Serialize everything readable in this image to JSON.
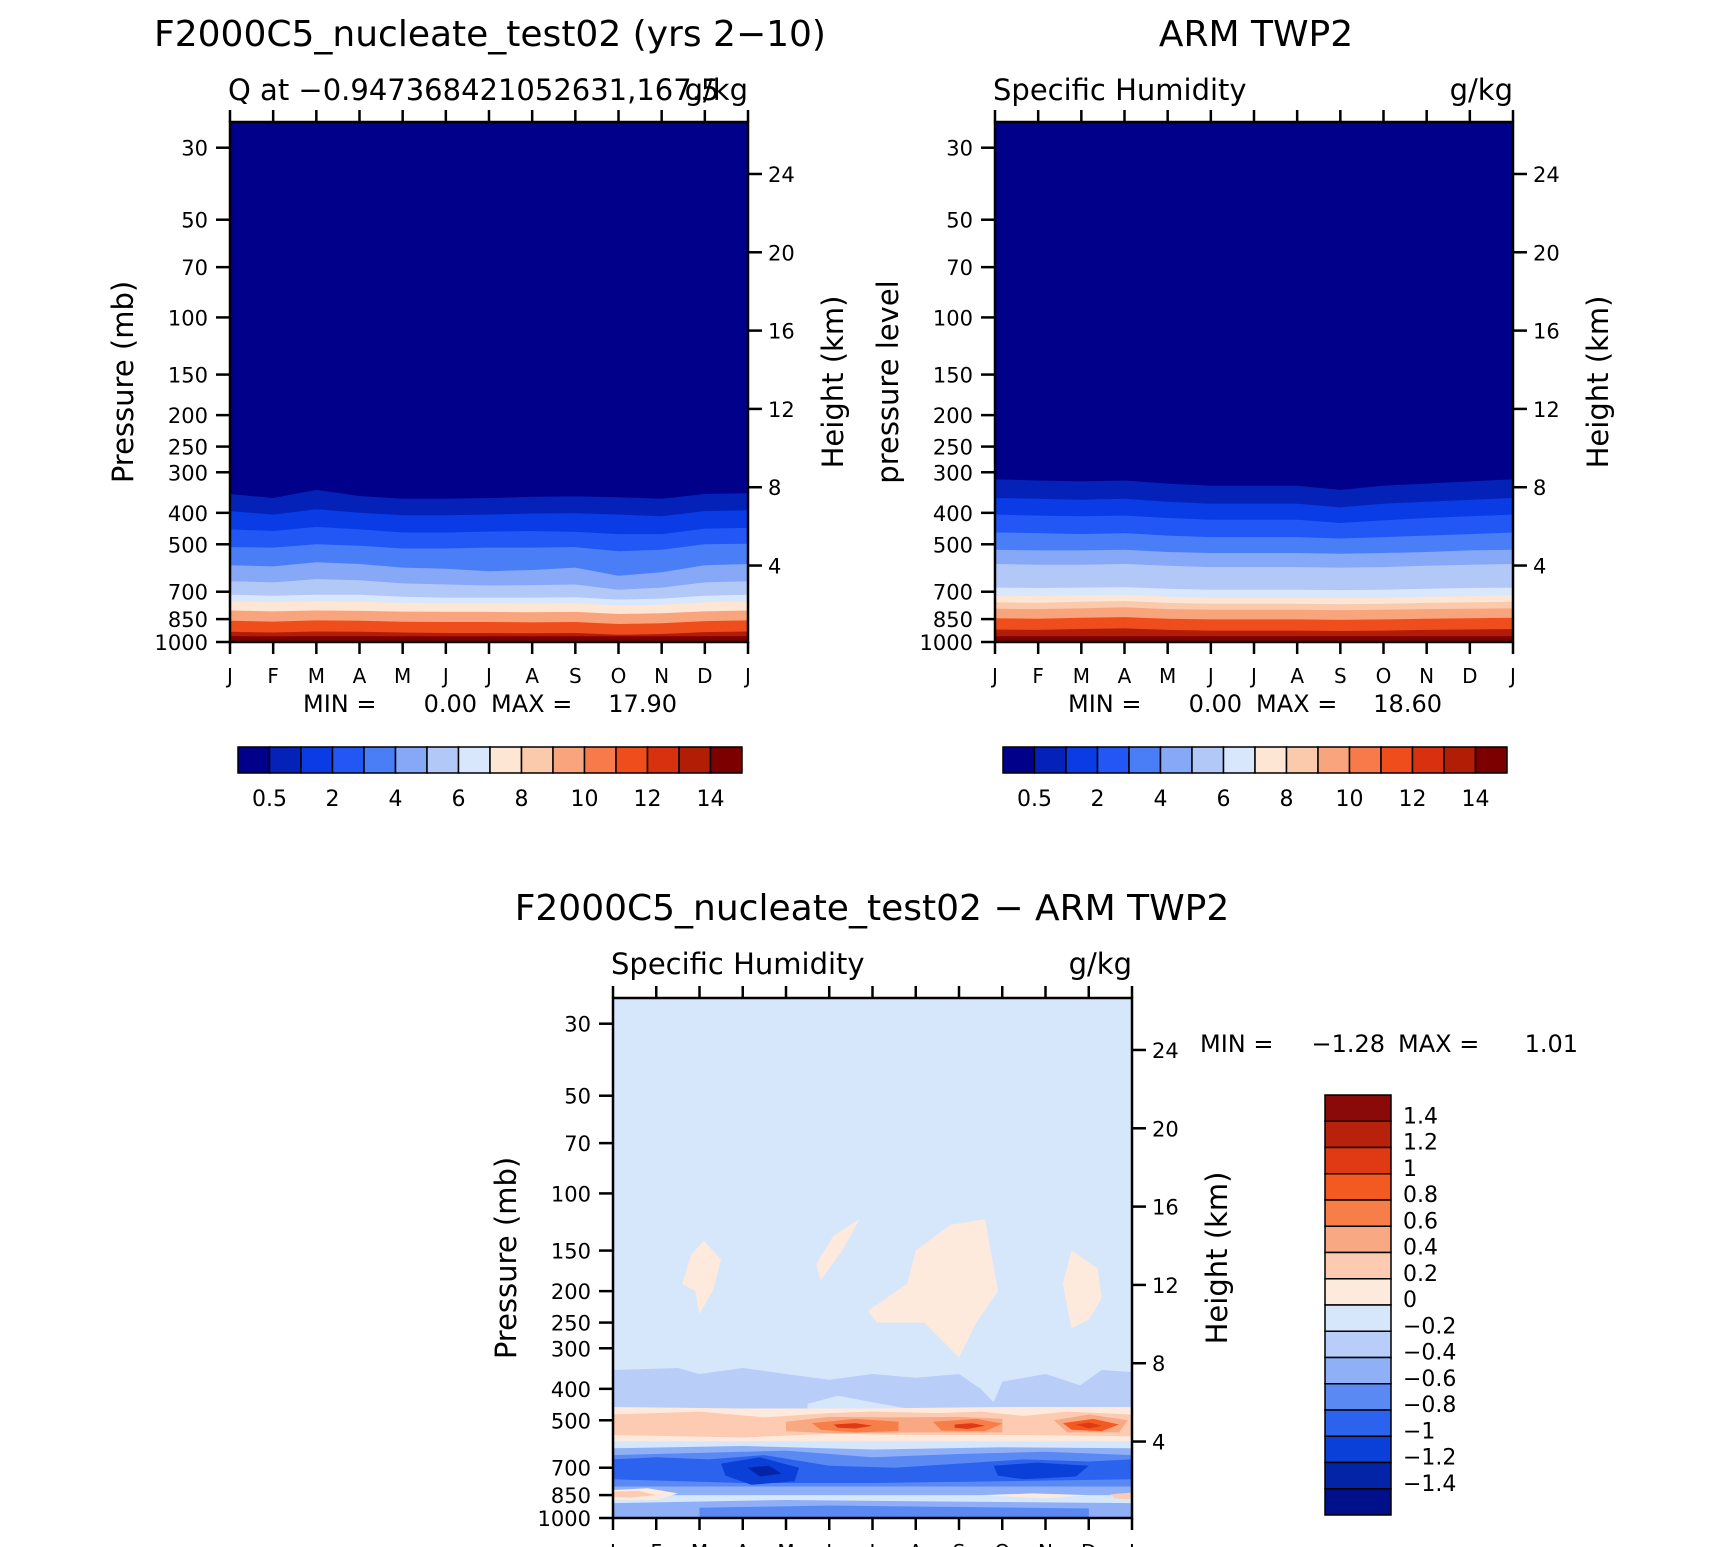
{
  "chart_data": [
    {
      "type": "heatmap",
      "title": "F2000C5_nucleate_test02 (yrs 2−10)",
      "subtitle_left": "Q at −0.947368421052631,167.5",
      "units": "g/kg",
      "ylabel_left": "Pressure (mb)",
      "ylabel_right": "Height (km)",
      "months": [
        "J",
        "F",
        "M",
        "A",
        "M",
        "J",
        "J",
        "A",
        "S",
        "O",
        "N",
        "D",
        "J"
      ],
      "pressure_ticks": [
        30,
        50,
        70,
        100,
        150,
        200,
        250,
        300,
        400,
        500,
        700,
        850,
        1000
      ],
      "height_ticks": [
        24,
        20,
        16,
        12,
        8,
        4
      ],
      "ylim_pressure": [
        1000,
        25
      ],
      "stats": {
        "min_label": "MIN =",
        "min_value": "0.00",
        "max_label": "MAX =",
        "max_value": "17.90"
      },
      "colorbar": {
        "levels": [
          "0.5",
          "2",
          "4",
          "6",
          "8",
          "10",
          "12",
          "14"
        ],
        "colors": [
          "#00008a",
          "#0522b8",
          "#0a3ce6",
          "#2257f5",
          "#4a7ef7",
          "#86a8f6",
          "#b2c9f8",
          "#d9e7fd",
          "#fde6d3",
          "#fbc9ab",
          "#f8a47c",
          "#f77a4a",
          "#f04d1d",
          "#d8310f",
          "#b21d06",
          "#7d0000"
        ]
      },
      "contour_bands_pressure_mb": [
        {
          "level": 0.5,
          "profile": [
            350,
            360,
            340,
            355,
            362,
            362,
            360,
            357,
            356,
            358,
            362,
            350,
            348
          ]
        },
        {
          "level": 1,
          "profile": [
            395,
            405,
            390,
            400,
            407,
            407,
            405,
            402,
            401,
            405,
            410,
            395,
            393
          ]
        },
        {
          "level": 2,
          "profile": [
            450,
            455,
            442,
            450,
            460,
            460,
            457,
            455,
            458,
            465,
            465,
            448,
            445
          ]
        },
        {
          "level": 3,
          "profile": [
            510,
            512,
            500,
            505,
            515,
            515,
            512,
            512,
            510,
            525,
            520,
            500,
            498
          ]
        },
        {
          "level": 4,
          "profile": [
            580,
            585,
            568,
            575,
            590,
            595,
            605,
            600,
            590,
            625,
            610,
            580,
            575
          ]
        },
        {
          "level": 6,
          "profile": [
            650,
            655,
            640,
            645,
            660,
            665,
            670,
            668,
            665,
            690,
            680,
            655,
            650
          ]
        },
        {
          "level": 7,
          "profile": [
            715,
            720,
            715,
            715,
            725,
            730,
            730,
            730,
            728,
            740,
            735,
            720,
            715
          ]
        },
        {
          "level": 8,
          "profile": [
            750,
            755,
            750,
            752,
            758,
            760,
            760,
            762,
            760,
            772,
            768,
            755,
            750
          ]
        },
        {
          "level": 10,
          "profile": [
            800,
            805,
            800,
            802,
            806,
            808,
            808,
            810,
            808,
            820,
            815,
            805,
            800
          ]
        },
        {
          "level": 12,
          "profile": [
            860,
            865,
            858,
            860,
            866,
            868,
            868,
            870,
            868,
            880,
            875,
            862,
            858
          ]
        },
        {
          "level": 14,
          "profile": [
            930,
            935,
            928,
            930,
            935,
            938,
            938,
            940,
            938,
            950,
            945,
            932,
            928
          ]
        }
      ]
    },
    {
      "type": "heatmap",
      "title": "ARM TWP2",
      "subtitle_left": "Specific Humidity",
      "units": "g/kg",
      "ylabel_left": "pressure level",
      "ylabel_right": "Height (km)",
      "months": [
        "J",
        "F",
        "M",
        "A",
        "M",
        "J",
        "J",
        "A",
        "S",
        "O",
        "N",
        "D",
        "J"
      ],
      "pressure_ticks": [
        30,
        50,
        70,
        100,
        150,
        200,
        250,
        300,
        400,
        500,
        700,
        850,
        1000
      ],
      "height_ticks": [
        24,
        20,
        16,
        12,
        8,
        4
      ],
      "ylim_pressure": [
        1000,
        25
      ],
      "stats": {
        "min_label": "MIN =",
        "min_value": "0.00",
        "max_label": "MAX =",
        "max_value": "18.60"
      },
      "colorbar": {
        "levels": [
          "0.5",
          "2",
          "4",
          "6",
          "8",
          "10",
          "12",
          "14"
        ],
        "colors": [
          "#00008a",
          "#0522b8",
          "#0a3ce6",
          "#2257f5",
          "#4a7ef7",
          "#86a8f6",
          "#b2c9f8",
          "#d9e7fd",
          "#fde6d3",
          "#fbc9ab",
          "#f8a47c",
          "#f77a4a",
          "#f04d1d",
          "#d8310f",
          "#b21d06",
          "#7d0000"
        ]
      },
      "contour_bands_pressure_mb": [
        {
          "level": 0.5,
          "profile": [
            315,
            318,
            320,
            318,
            325,
            330,
            330,
            330,
            340,
            330,
            325,
            320,
            315
          ]
        },
        {
          "level": 1,
          "profile": [
            360,
            362,
            365,
            362,
            370,
            375,
            375,
            375,
            385,
            375,
            370,
            365,
            360
          ]
        },
        {
          "level": 2,
          "profile": [
            405,
            408,
            410,
            408,
            415,
            420,
            420,
            420,
            430,
            422,
            415,
            410,
            405
          ]
        },
        {
          "level": 3,
          "profile": [
            460,
            462,
            465,
            462,
            470,
            475,
            475,
            475,
            480,
            475,
            470,
            465,
            460
          ]
        },
        {
          "level": 4,
          "profile": [
            520,
            522,
            522,
            520,
            528,
            532,
            532,
            532,
            535,
            532,
            528,
            522,
            520
          ]
        },
        {
          "level": 5,
          "profile": [
            575,
            578,
            578,
            575,
            582,
            588,
            588,
            588,
            590,
            588,
            582,
            578,
            575
          ]
        },
        {
          "level": 6,
          "profile": [
            625,
            628,
            628,
            625,
            632,
            638,
            638,
            638,
            640,
            638,
            632,
            628,
            625
          ]
        },
        {
          "level": 7,
          "profile": [
            680,
            682,
            680,
            678,
            685,
            690,
            690,
            690,
            692,
            690,
            685,
            682,
            680
          ]
        },
        {
          "level": 8,
          "profile": [
            720,
            722,
            718,
            715,
            725,
            730,
            730,
            730,
            732,
            730,
            725,
            722,
            718
          ]
        },
        {
          "level": 9,
          "profile": [
            755,
            758,
            752,
            748,
            758,
            762,
            762,
            762,
            765,
            762,
            758,
            755,
            752
          ]
        },
        {
          "level": 10,
          "profile": [
            790,
            792,
            788,
            782,
            792,
            796,
            796,
            796,
            798,
            796,
            792,
            790,
            788
          ]
        },
        {
          "level": 12,
          "profile": [
            845,
            848,
            842,
            838,
            848,
            852,
            852,
            852,
            855,
            852,
            848,
            845,
            842
          ]
        },
        {
          "level": 14,
          "profile": [
            915,
            918,
            912,
            908,
            918,
            922,
            922,
            922,
            925,
            922,
            918,
            915,
            912
          ]
        }
      ]
    },
    {
      "type": "heatmap",
      "title": "F2000C5_nucleate_test02 − ARM TWP2",
      "subtitle_left": "Specific Humidity",
      "units": "g/kg",
      "ylabel_left": "Pressure (mb)",
      "ylabel_right": "Height (km)",
      "months": [
        "J",
        "F",
        "M",
        "A",
        "M",
        "J",
        "J",
        "A",
        "S",
        "O",
        "N",
        "D",
        "J"
      ],
      "pressure_ticks": [
        30,
        50,
        70,
        100,
        150,
        200,
        250,
        300,
        400,
        500,
        700,
        850,
        1000
      ],
      "height_ticks": [
        24,
        20,
        16,
        12,
        8,
        4
      ],
      "ylim_pressure": [
        1000,
        25
      ],
      "stats": {
        "min_label": "MIN =",
        "min_value": "−1.28",
        "max_label": "MAX =",
        "max_value": "1.01"
      },
      "colorbar": {
        "levels": [
          "1.4",
          "1.2",
          "1",
          "0.8",
          "0.6",
          "0.4",
          "0.2",
          "0",
          "−0.2",
          "−0.4",
          "−0.6",
          "−0.8",
          "−1",
          "−1.2",
          "−1.4"
        ],
        "colors": [
          "#8a0a0a",
          "#b8220c",
          "#e03a14",
          "#f25a22",
          "#f77e48",
          "#f9a884",
          "#fccbb2",
          "#fdeadd",
          "#d7e7fb",
          "#b8cef9",
          "#8fb0f6",
          "#5a89f4",
          "#2b62ee",
          "#0a40d8",
          "#0424a8",
          "#00108a"
        ]
      }
    }
  ]
}
